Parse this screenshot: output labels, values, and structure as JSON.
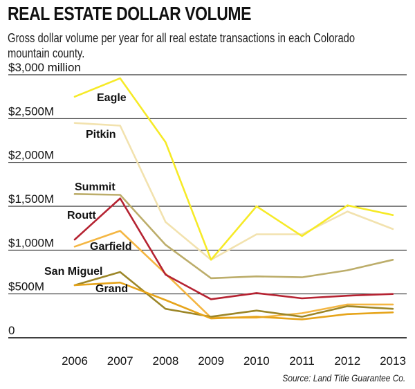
{
  "header": {
    "title": "REAL ESTATE DOLLAR VOLUME",
    "subtitle": "Gross dollar volume per year for all real estate transactions in each Colorado mountain county."
  },
  "footer": {
    "source": "Source: Land Title Guarantee Co."
  },
  "chart_data": {
    "type": "line",
    "title": "REAL ESTATE DOLLAR VOLUME",
    "subtitle": "Gross dollar volume per year for all real estate transactions in each Colorado mountain county.",
    "x": [
      2006,
      2007,
      2008,
      2009,
      2010,
      2011,
      2012,
      2013
    ],
    "x_tick_labels": [
      "2006",
      "2007",
      "2008",
      "2009",
      "2010",
      "2011",
      "2012",
      "2013"
    ],
    "ylim": [
      0,
      3000
    ],
    "y_ticks": [
      0,
      500,
      1000,
      1500,
      2000,
      2500,
      3000
    ],
    "y_tick_labels": [
      "0",
      "$500M",
      "$1,000M",
      "$1,500M",
      "$2,000M",
      "$2,500M",
      "$3,000 million"
    ],
    "grid": "horizontal",
    "legend": "inline labels",
    "series": [
      {
        "name": "Pitkin",
        "color": "#f2e2ae",
        "values": [
          2450,
          2420,
          1320,
          890,
          1180,
          1180,
          1440,
          1240
        ]
      },
      {
        "name": "Eagle",
        "color": "#f6ea27",
        "values": [
          2750,
          2960,
          2230,
          890,
          1500,
          1160,
          1510,
          1400
        ]
      },
      {
        "name": "Summit",
        "color": "#bcad6a",
        "values": [
          1640,
          1630,
          1060,
          680,
          700,
          690,
          770,
          890
        ]
      },
      {
        "name": "Garfield",
        "color": "#f4b642",
        "values": [
          1040,
          1220,
          730,
          230,
          230,
          280,
          380,
          380
        ]
      },
      {
        "name": "San Miguel",
        "color": "#9c8628",
        "values": [
          600,
          750,
          330,
          240,
          310,
          240,
          360,
          330
        ]
      },
      {
        "name": "Grand",
        "color": "#e6a41a",
        "values": [
          600,
          630,
          430,
          220,
          240,
          210,
          270,
          290
        ]
      },
      {
        "name": "Routt",
        "color": "#b52332",
        "values": [
          1120,
          1590,
          720,
          440,
          510,
          450,
          480,
          500
        ]
      }
    ]
  }
}
